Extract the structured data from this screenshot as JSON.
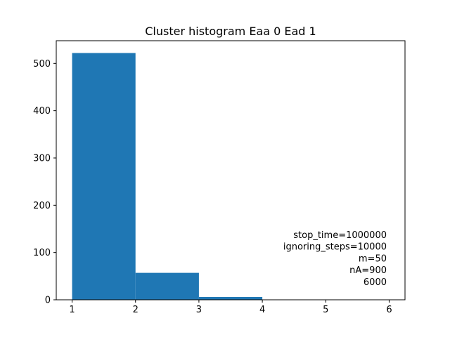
{
  "chart_data": {
    "type": "bar",
    "title": "Cluster histogram Eaa 0 Ead 1",
    "xlabel": "",
    "ylabel": "",
    "bins": [
      {
        "start": 1,
        "end": 2,
        "value": 522
      },
      {
        "start": 2,
        "end": 3,
        "value": 57
      },
      {
        "start": 3,
        "end": 4,
        "value": 6
      },
      {
        "start": 4,
        "end": 5,
        "value": 0
      },
      {
        "start": 5,
        "end": 6,
        "value": 0
      }
    ],
    "xlim": [
      0.75,
      6.25
    ],
    "ylim": [
      0,
      548
    ],
    "xticks": [
      "1",
      "2",
      "3",
      "4",
      "5",
      "6"
    ],
    "yticks": [
      "0",
      "100",
      "200",
      "300",
      "400",
      "500"
    ],
    "bar_color": "#1f77b4",
    "grid": false,
    "annotation_lines": [
      "stop_time=1000000",
      "ignoring_steps=10000",
      "m=50",
      "nA=900",
      "6000"
    ]
  }
}
